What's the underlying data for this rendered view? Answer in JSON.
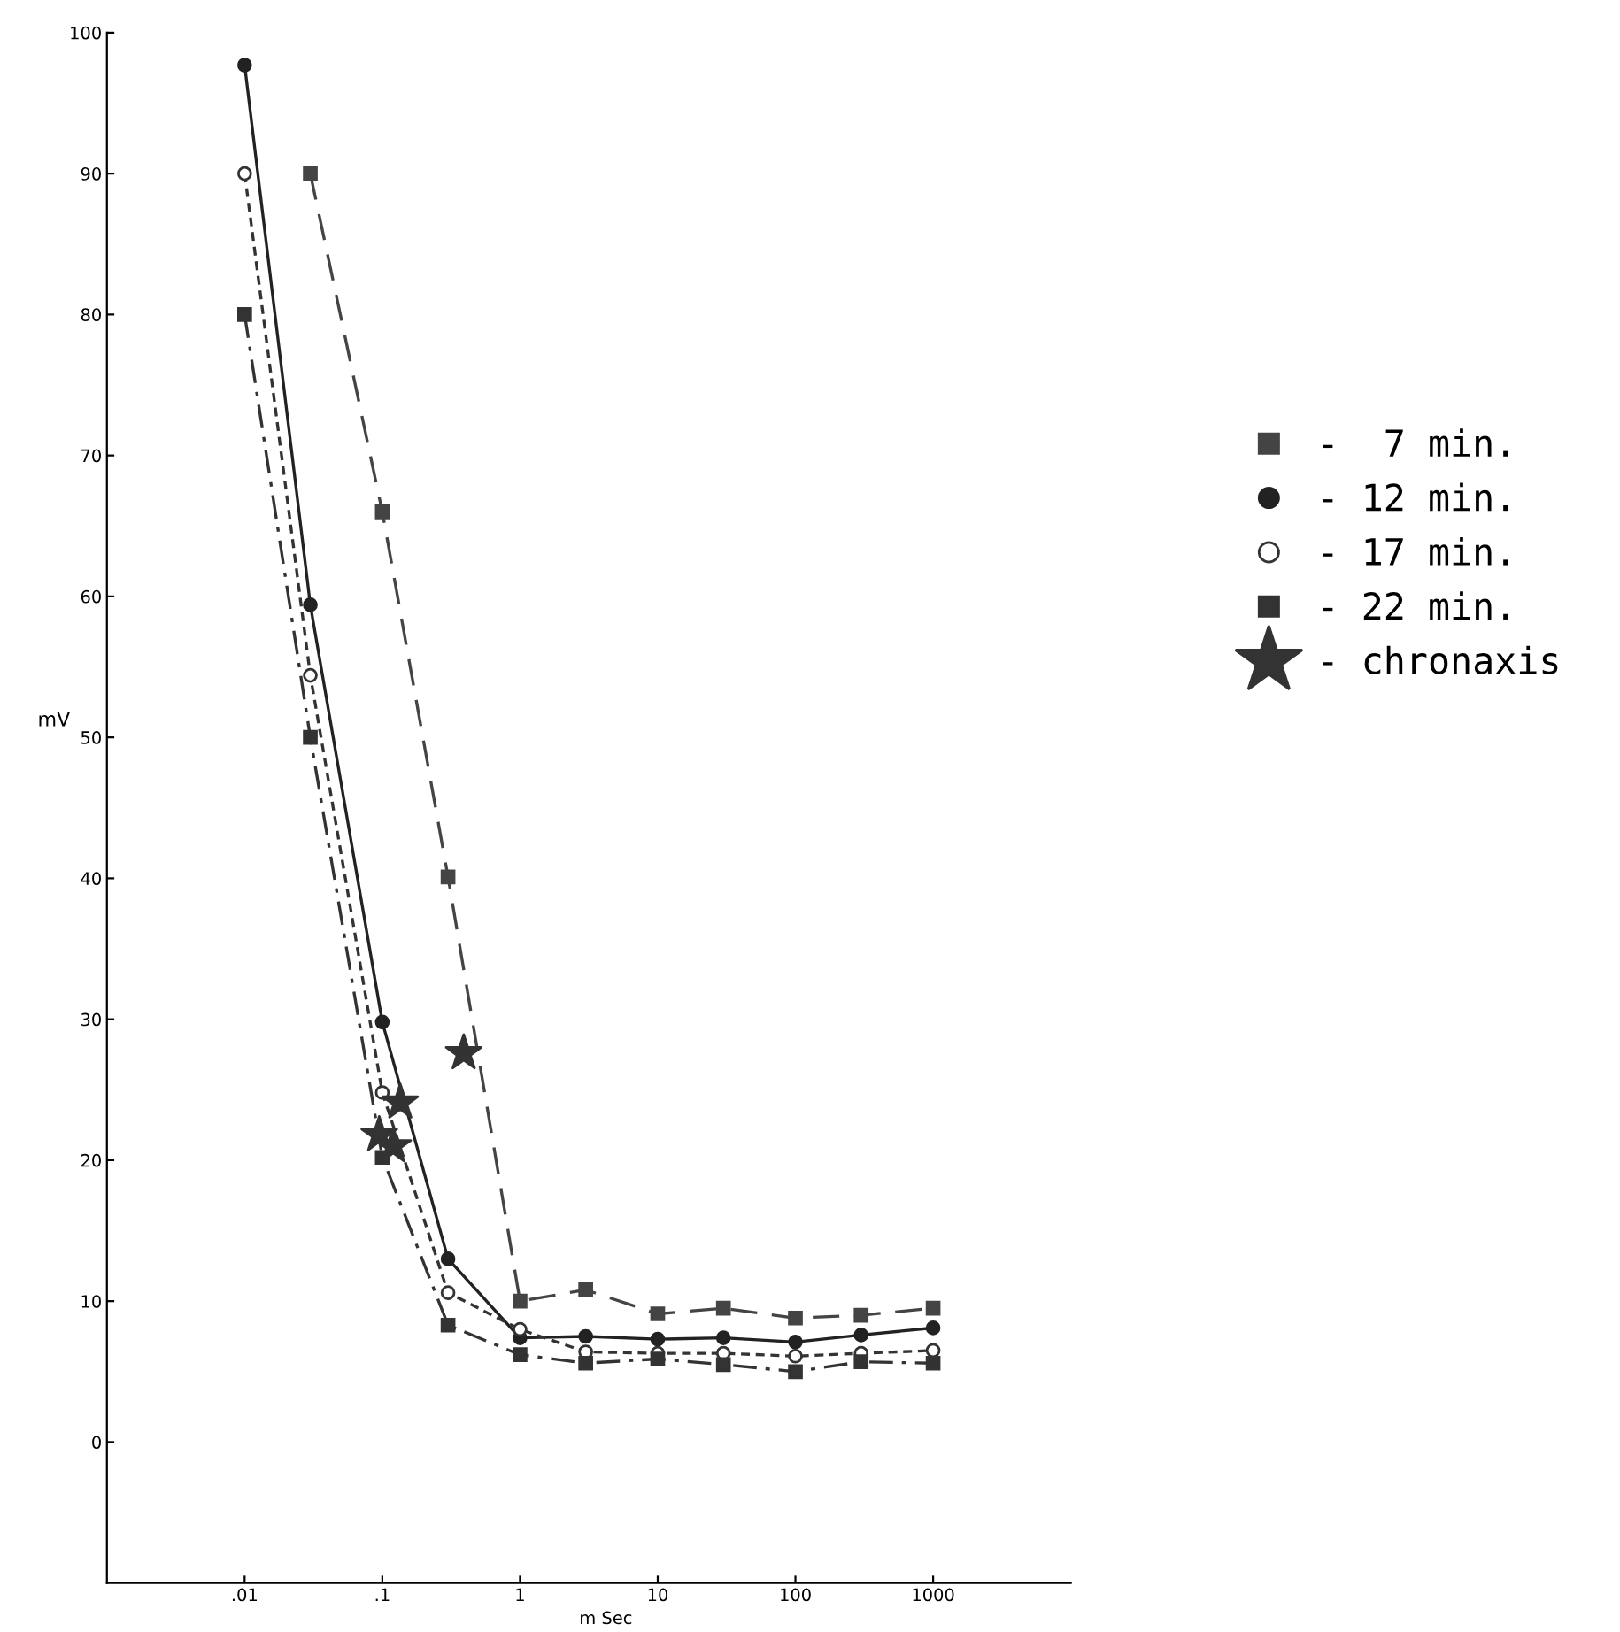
{
  "chart_data": {
    "type": "line",
    "xlabel": "m Sec",
    "ylabel": "mV",
    "log": "x",
    "xlim": [
      0.001,
      10000
    ],
    "xticks": [
      {
        "value": 0.01,
        "label": ".01"
      },
      {
        "value": 0.1,
        "label": ".1"
      },
      1,
      10,
      100,
      1000
    ],
    "ylim": [
      -10,
      100
    ],
    "yticks": [
      0,
      10,
      20,
      30,
      40,
      50,
      60,
      70,
      80,
      90,
      100
    ],
    "grid": false,
    "legend": "right",
    "series": [
      {
        "name": "-  7 min.",
        "color": "#444444",
        "marker": "square",
        "line_style": "dashed",
        "x": [
          0.03,
          0.1,
          0.3,
          1,
          3,
          10,
          30,
          100,
          300,
          1000
        ],
        "values": [
          90,
          66,
          40.1,
          10,
          10.8,
          9.1,
          9.5,
          8.8,
          9,
          9.5
        ]
      },
      {
        "name": "- 12 min.",
        "color": "#222222",
        "marker": "circle",
        "line_style": "solid",
        "x": [
          0.01,
          0.03,
          0.1,
          0.3,
          1,
          3,
          10,
          30,
          100,
          300,
          1000
        ],
        "values": [
          97.7,
          59.4,
          29.8,
          13,
          7.4,
          7.5,
          7.3,
          7.4,
          7.1,
          7.6,
          8.1
        ]
      },
      {
        "name": "- 17 min.",
        "color": "#333333",
        "marker": "open circle",
        "line_style": "dotted",
        "x": [
          0.01,
          0.03,
          0.1,
          0.3,
          1,
          3,
          10,
          30,
          100,
          300,
          1000
        ],
        "values": [
          90,
          54.4,
          24.8,
          10.6,
          8,
          6.4,
          6.3,
          6.3,
          6.1,
          6.3,
          6.5
        ]
      },
      {
        "name": "- 22 min.",
        "color": "#333333",
        "marker": "square",
        "line_style": "dashdot",
        "x": [
          0.01,
          0.03,
          0.1,
          0.3,
          1,
          3,
          10,
          30,
          100,
          300,
          1000
        ],
        "values": [
          80,
          50,
          20.2,
          8.3,
          6.2,
          5.6,
          5.9,
          5.5,
          5,
          5.7,
          5.6
        ]
      },
      {
        "name": "- chronaxis",
        "type": "scatter",
        "color": "#333333",
        "marker": "star",
        "x": [
          0.39,
          0.135,
          0.095,
          0.12
        ],
        "values": [
          27.6,
          24.1,
          21.8,
          21
        ]
      }
    ]
  }
}
